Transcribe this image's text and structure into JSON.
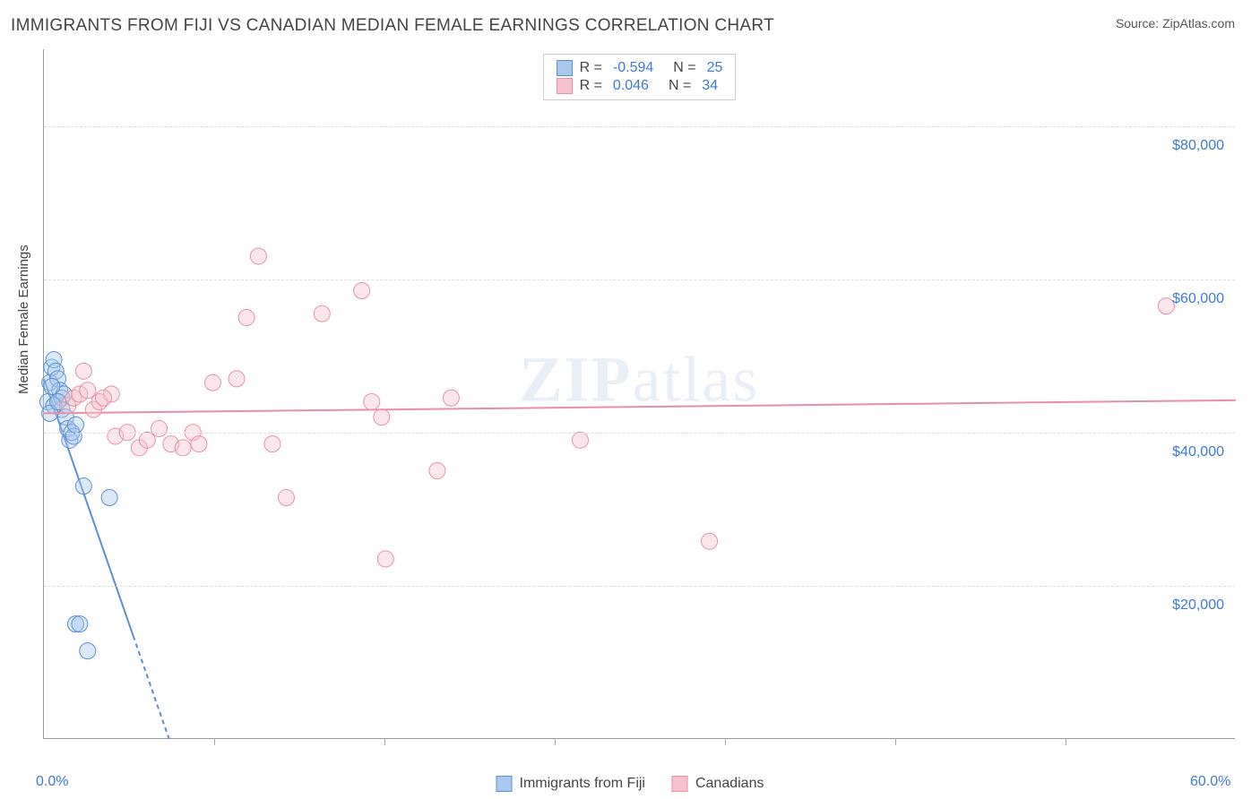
{
  "title": "IMMIGRANTS FROM FIJI VS CANADIAN MEDIAN FEMALE EARNINGS CORRELATION CHART",
  "source": "Source: ZipAtlas.com",
  "watermark": "ZIPatlas",
  "y_axis_label": "Median Female Earnings",
  "chart": {
    "type": "scatter",
    "background_color": "#ffffff",
    "grid_color": "#dddddd",
    "axis_color": "#999999",
    "tick_label_color": "#3a7bd5",
    "xlim": [
      0,
      60
    ],
    "ylim": [
      0,
      90000
    ],
    "x_ticks_major": [
      0,
      60
    ],
    "x_tick_labels": [
      "0.0%",
      "60.0%"
    ],
    "x_ticks_minor": [
      8.57,
      17.14,
      25.71,
      34.29,
      42.86,
      51.43
    ],
    "y_ticks": [
      20000,
      40000,
      60000,
      80000
    ],
    "y_tick_labels": [
      "$20,000",
      "$40,000",
      "$60,000",
      "$80,000"
    ],
    "marker_radius": 9,
    "marker_opacity": 0.4,
    "line_width": 2,
    "series": [
      {
        "name": "Immigrants from Fiji",
        "color_fill": "#a8c8ed",
        "color_stroke": "#5b8fd6",
        "R": "-0.594",
        "N": "25",
        "trend": {
          "x1": 0,
          "y1": 47000,
          "x2": 6.3,
          "y2": 0,
          "dashed_after_x": 4.5
        },
        "points": [
          {
            "x": 0.2,
            "y": 44000
          },
          {
            "x": 0.3,
            "y": 46500
          },
          {
            "x": 0.4,
            "y": 48500
          },
          {
            "x": 0.5,
            "y": 49500
          },
          {
            "x": 0.6,
            "y": 48000
          },
          {
            "x": 0.7,
            "y": 47000
          },
          {
            "x": 0.8,
            "y": 45500
          },
          {
            "x": 0.9,
            "y": 44500
          },
          {
            "x": 0.9,
            "y": 43000
          },
          {
            "x": 1.0,
            "y": 45000
          },
          {
            "x": 1.1,
            "y": 42000
          },
          {
            "x": 1.2,
            "y": 40500
          },
          {
            "x": 1.3,
            "y": 39000
          },
          {
            "x": 1.4,
            "y": 40000
          },
          {
            "x": 1.5,
            "y": 39500
          },
          {
            "x": 1.6,
            "y": 41000
          },
          {
            "x": 0.5,
            "y": 43500
          },
          {
            "x": 0.3,
            "y": 42500
          },
          {
            "x": 2.0,
            "y": 33000
          },
          {
            "x": 3.3,
            "y": 31500
          },
          {
            "x": 1.6,
            "y": 15000
          },
          {
            "x": 1.8,
            "y": 15000
          },
          {
            "x": 2.2,
            "y": 11500
          },
          {
            "x": 0.4,
            "y": 46000
          },
          {
            "x": 0.7,
            "y": 44000
          }
        ]
      },
      {
        "name": "Canadians",
        "color_fill": "#f5c2cd",
        "color_stroke": "#e88fa5",
        "R": "0.046",
        "N": "34",
        "trend": {
          "x1": 0,
          "y1": 42500,
          "x2": 60,
          "y2": 44200,
          "dashed_after_x": null
        },
        "points": [
          {
            "x": 1.2,
            "y": 43500
          },
          {
            "x": 1.5,
            "y": 44500
          },
          {
            "x": 1.8,
            "y": 45000
          },
          {
            "x": 2.2,
            "y": 45500
          },
          {
            "x": 2.5,
            "y": 43000
          },
          {
            "x": 2.8,
            "y": 44000
          },
          {
            "x": 3.4,
            "y": 45000
          },
          {
            "x": 3.6,
            "y": 39500
          },
          {
            "x": 4.2,
            "y": 40000
          },
          {
            "x": 4.8,
            "y": 38000
          },
          {
            "x": 5.2,
            "y": 39000
          },
          {
            "x": 5.8,
            "y": 40500
          },
          {
            "x": 6.4,
            "y": 38500
          },
          {
            "x": 7.0,
            "y": 38000
          },
          {
            "x": 7.5,
            "y": 40000
          },
          {
            "x": 7.8,
            "y": 38500
          },
          {
            "x": 8.5,
            "y": 46500
          },
          {
            "x": 9.7,
            "y": 47000
          },
          {
            "x": 10.2,
            "y": 55000
          },
          {
            "x": 10.8,
            "y": 63000
          },
          {
            "x": 11.5,
            "y": 38500
          },
          {
            "x": 12.2,
            "y": 31500
          },
          {
            "x": 14.0,
            "y": 55500
          },
          {
            "x": 16.0,
            "y": 58500
          },
          {
            "x": 16.5,
            "y": 44000
          },
          {
            "x": 17.0,
            "y": 42000
          },
          {
            "x": 17.2,
            "y": 23500
          },
          {
            "x": 19.8,
            "y": 35000
          },
          {
            "x": 20.5,
            "y": 44500
          },
          {
            "x": 27.0,
            "y": 39000
          },
          {
            "x": 33.5,
            "y": 25800
          },
          {
            "x": 56.5,
            "y": 56500
          },
          {
            "x": 2.0,
            "y": 48000
          },
          {
            "x": 3.0,
            "y": 44500
          }
        ]
      }
    ],
    "legend_top": {
      "R_label": "R =",
      "N_label": "N ="
    },
    "legend_bottom": [
      "Immigrants from Fiji",
      "Canadians"
    ]
  }
}
